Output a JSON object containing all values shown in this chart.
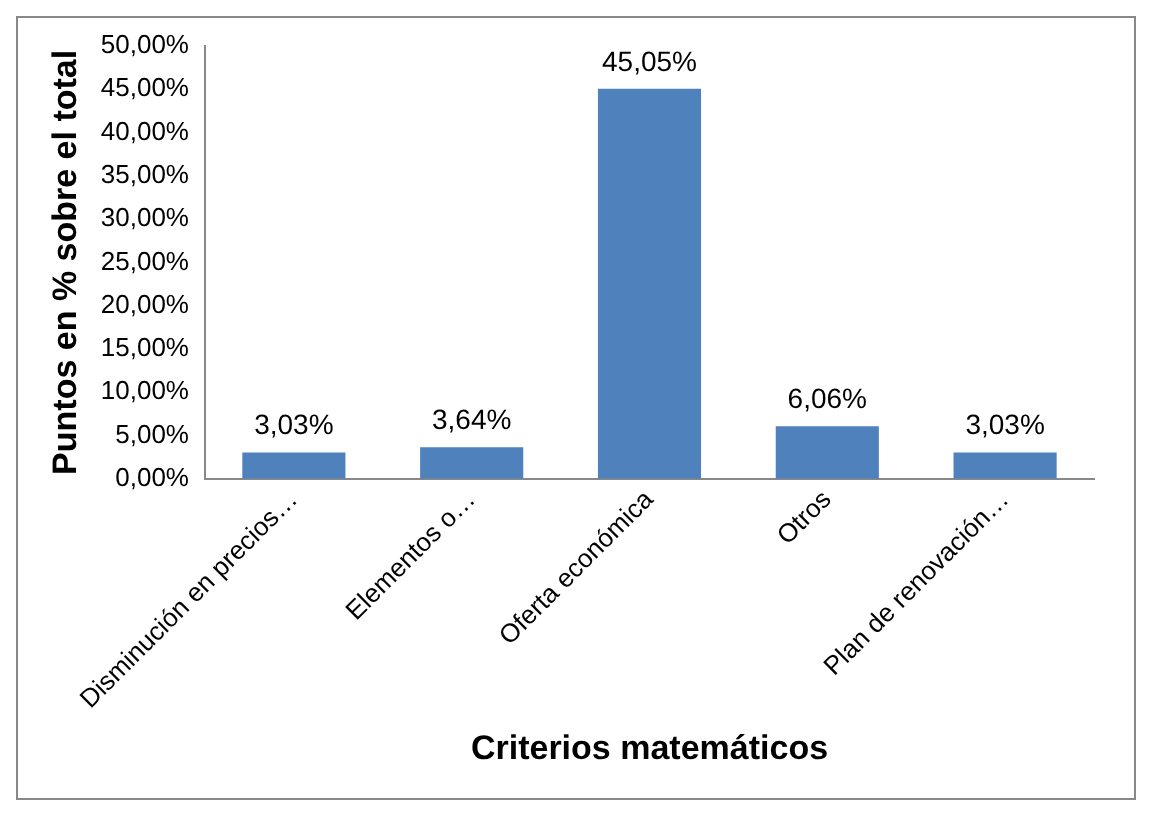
{
  "chart_data": {
    "type": "bar",
    "xlabel": "Criterios matemáticos",
    "ylabel": "Puntos en % sobre el total",
    "categories": [
      "Disminución en precios…",
      "Elementos o…",
      "Oferta económica",
      "Otros",
      "Plan de renovación…"
    ],
    "values": [
      3.03,
      3.64,
      45.05,
      6.06,
      3.03
    ],
    "value_labels": [
      "3,03%",
      "3,64%",
      "45,05%",
      "6,06%",
      "3,03%"
    ],
    "color": "#4f81bd",
    "ylim": [
      0,
      50
    ],
    "yticks": [
      {
        "value": 0,
        "label": "0,00%"
      },
      {
        "value": 5,
        "label": "5,00%"
      },
      {
        "value": 10,
        "label": "10,00%"
      },
      {
        "value": 15,
        "label": "15,00%"
      },
      {
        "value": 20,
        "label": "20,00%"
      },
      {
        "value": 25,
        "label": "25,00%"
      },
      {
        "value": 30,
        "label": "30,00%"
      },
      {
        "value": 35,
        "label": "35,00%"
      },
      {
        "value": 40,
        "label": "40,00%"
      },
      {
        "value": 45,
        "label": "45,00%"
      },
      {
        "value": 50,
        "label": "50,00%"
      }
    ],
    "grid": false,
    "legend": false
  }
}
